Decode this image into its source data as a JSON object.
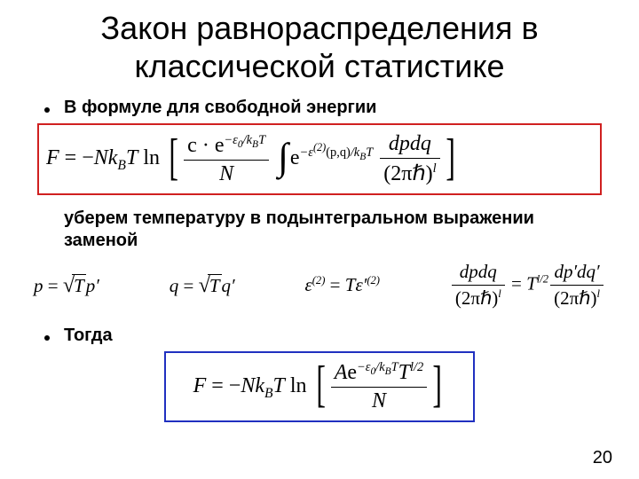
{
  "title_line1": "Закон равнораспределения в",
  "title_line2": "классической статистике",
  "bullet1": "В формуле для свободной энергии",
  "text_after_formula1a": "уберем температуру в подынтегральном выражении",
  "text_after_formula1b": "заменой",
  "bullet2": "Тогда",
  "pagenum": "20",
  "colors": {
    "red_border": "#d02020",
    "blue_border": "#2030c0",
    "background": "#ffffff",
    "text": "#000000"
  },
  "formula1": {
    "lhs": "F",
    "prefix_rm": " = −",
    "N": "N",
    "kB_k": "k",
    "kB_B": "B",
    "T": "T",
    "ln": " ln ",
    "frac1_num_c": "c · e",
    "frac1_num_exp": "−ε",
    "frac1_num_exp_sub": "0",
    "frac1_num_exp_tail": "/k",
    "frac1_num_exp_B": "B",
    "frac1_num_exp_T": "T",
    "frac1_den": "N",
    "int_e": "e",
    "int_exp_a": "−ε",
    "int_exp_sup": "(2)",
    "int_exp_args": "(p,q)",
    "int_exp_tail": "/k",
    "int_exp_B": "B",
    "int_exp_T": "T",
    "frac2_num": "dpdq",
    "frac2_den_a": "(2πℏ)",
    "frac2_den_l": "l"
  },
  "subs": {
    "s1_lhs": "p",
    "s1_eq": " = ",
    "s1_rad": "T",
    "s1_rhs": "p′",
    "s2_lhs": "q",
    "s2_eq": " = ",
    "s2_rad": "T",
    "s2_rhs": "q′",
    "s3_lhs_eps": "ε",
    "s3_lhs_sup": "(2)",
    "s3_eq": " = ",
    "s3_rhs_T": "T",
    "s3_rhs_eps": "ε′",
    "s3_rhs_sup": "(2)",
    "s4_frac1_num": "dpdq",
    "s4_frac1_den_a": "(2πℏ)",
    "s4_frac1_den_l": "l",
    "s4_eq": " = ",
    "s4_T": "T",
    "s4_T_sup": "l/2",
    "s4_frac2_num": "dp′dq′",
    "s4_frac2_den_a": "(2πℏ)",
    "s4_frac2_den_l": "l"
  },
  "formula2": {
    "lhs": "F",
    "prefix_rm": " = −",
    "N": "N",
    "kB_k": "k",
    "kB_B": "B",
    "T": "T",
    "ln": " ln ",
    "num_A": "A",
    "num_e": "e",
    "num_exp_a": "−ε",
    "num_exp_sub": "0",
    "num_exp_tail": "/k",
    "num_exp_B": "B",
    "num_exp_T": "T",
    "num_T": "T",
    "num_T_sup": "l/2",
    "den": "N"
  }
}
